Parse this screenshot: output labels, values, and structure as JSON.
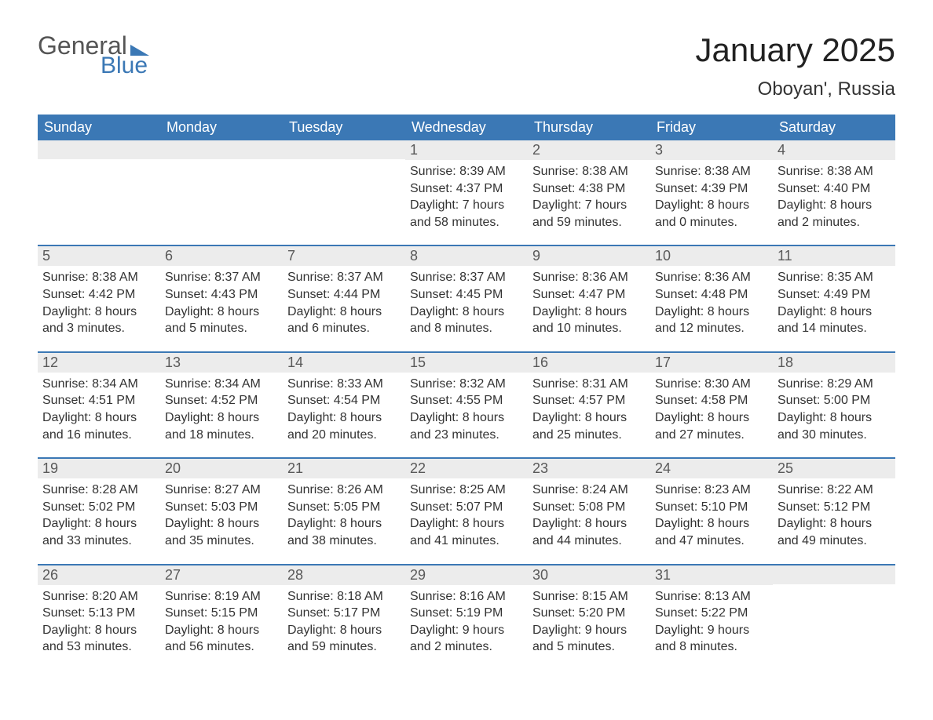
{
  "logo": {
    "word1": "General",
    "word2": "Blue"
  },
  "title": "January 2025",
  "location": "Oboyan', Russia",
  "colors": {
    "header_bg": "#3b78b5",
    "header_text": "#ffffff",
    "daynum_bg": "#ececec",
    "daynum_text": "#595959",
    "week_border": "#3b78b5",
    "body_text": "#333333",
    "logo_gray": "#555555",
    "logo_blue": "#3b78b5"
  },
  "day_names": [
    "Sunday",
    "Monday",
    "Tuesday",
    "Wednesday",
    "Thursday",
    "Friday",
    "Saturday"
  ],
  "weeks": [
    [
      {
        "n": "",
        "sunrise": "",
        "sunset": "",
        "daylight": ""
      },
      {
        "n": "",
        "sunrise": "",
        "sunset": "",
        "daylight": ""
      },
      {
        "n": "",
        "sunrise": "",
        "sunset": "",
        "daylight": ""
      },
      {
        "n": "1",
        "sunrise": "Sunrise: 8:39 AM",
        "sunset": "Sunset: 4:37 PM",
        "daylight": "Daylight: 7 hours and 58 minutes."
      },
      {
        "n": "2",
        "sunrise": "Sunrise: 8:38 AM",
        "sunset": "Sunset: 4:38 PM",
        "daylight": "Daylight: 7 hours and 59 minutes."
      },
      {
        "n": "3",
        "sunrise": "Sunrise: 8:38 AM",
        "sunset": "Sunset: 4:39 PM",
        "daylight": "Daylight: 8 hours and 0 minutes."
      },
      {
        "n": "4",
        "sunrise": "Sunrise: 8:38 AM",
        "sunset": "Sunset: 4:40 PM",
        "daylight": "Daylight: 8 hours and 2 minutes."
      }
    ],
    [
      {
        "n": "5",
        "sunrise": "Sunrise: 8:38 AM",
        "sunset": "Sunset: 4:42 PM",
        "daylight": "Daylight: 8 hours and 3 minutes."
      },
      {
        "n": "6",
        "sunrise": "Sunrise: 8:37 AM",
        "sunset": "Sunset: 4:43 PM",
        "daylight": "Daylight: 8 hours and 5 minutes."
      },
      {
        "n": "7",
        "sunrise": "Sunrise: 8:37 AM",
        "sunset": "Sunset: 4:44 PM",
        "daylight": "Daylight: 8 hours and 6 minutes."
      },
      {
        "n": "8",
        "sunrise": "Sunrise: 8:37 AM",
        "sunset": "Sunset: 4:45 PM",
        "daylight": "Daylight: 8 hours and 8 minutes."
      },
      {
        "n": "9",
        "sunrise": "Sunrise: 8:36 AM",
        "sunset": "Sunset: 4:47 PM",
        "daylight": "Daylight: 8 hours and 10 minutes."
      },
      {
        "n": "10",
        "sunrise": "Sunrise: 8:36 AM",
        "sunset": "Sunset: 4:48 PM",
        "daylight": "Daylight: 8 hours and 12 minutes."
      },
      {
        "n": "11",
        "sunrise": "Sunrise: 8:35 AM",
        "sunset": "Sunset: 4:49 PM",
        "daylight": "Daylight: 8 hours and 14 minutes."
      }
    ],
    [
      {
        "n": "12",
        "sunrise": "Sunrise: 8:34 AM",
        "sunset": "Sunset: 4:51 PM",
        "daylight": "Daylight: 8 hours and 16 minutes."
      },
      {
        "n": "13",
        "sunrise": "Sunrise: 8:34 AM",
        "sunset": "Sunset: 4:52 PM",
        "daylight": "Daylight: 8 hours and 18 minutes."
      },
      {
        "n": "14",
        "sunrise": "Sunrise: 8:33 AM",
        "sunset": "Sunset: 4:54 PM",
        "daylight": "Daylight: 8 hours and 20 minutes."
      },
      {
        "n": "15",
        "sunrise": "Sunrise: 8:32 AM",
        "sunset": "Sunset: 4:55 PM",
        "daylight": "Daylight: 8 hours and 23 minutes."
      },
      {
        "n": "16",
        "sunrise": "Sunrise: 8:31 AM",
        "sunset": "Sunset: 4:57 PM",
        "daylight": "Daylight: 8 hours and 25 minutes."
      },
      {
        "n": "17",
        "sunrise": "Sunrise: 8:30 AM",
        "sunset": "Sunset: 4:58 PM",
        "daylight": "Daylight: 8 hours and 27 minutes."
      },
      {
        "n": "18",
        "sunrise": "Sunrise: 8:29 AM",
        "sunset": "Sunset: 5:00 PM",
        "daylight": "Daylight: 8 hours and 30 minutes."
      }
    ],
    [
      {
        "n": "19",
        "sunrise": "Sunrise: 8:28 AM",
        "sunset": "Sunset: 5:02 PM",
        "daylight": "Daylight: 8 hours and 33 minutes."
      },
      {
        "n": "20",
        "sunrise": "Sunrise: 8:27 AM",
        "sunset": "Sunset: 5:03 PM",
        "daylight": "Daylight: 8 hours and 35 minutes."
      },
      {
        "n": "21",
        "sunrise": "Sunrise: 8:26 AM",
        "sunset": "Sunset: 5:05 PM",
        "daylight": "Daylight: 8 hours and 38 minutes."
      },
      {
        "n": "22",
        "sunrise": "Sunrise: 8:25 AM",
        "sunset": "Sunset: 5:07 PM",
        "daylight": "Daylight: 8 hours and 41 minutes."
      },
      {
        "n": "23",
        "sunrise": "Sunrise: 8:24 AM",
        "sunset": "Sunset: 5:08 PM",
        "daylight": "Daylight: 8 hours and 44 minutes."
      },
      {
        "n": "24",
        "sunrise": "Sunrise: 8:23 AM",
        "sunset": "Sunset: 5:10 PM",
        "daylight": "Daylight: 8 hours and 47 minutes."
      },
      {
        "n": "25",
        "sunrise": "Sunrise: 8:22 AM",
        "sunset": "Sunset: 5:12 PM",
        "daylight": "Daylight: 8 hours and 49 minutes."
      }
    ],
    [
      {
        "n": "26",
        "sunrise": "Sunrise: 8:20 AM",
        "sunset": "Sunset: 5:13 PM",
        "daylight": "Daylight: 8 hours and 53 minutes."
      },
      {
        "n": "27",
        "sunrise": "Sunrise: 8:19 AM",
        "sunset": "Sunset: 5:15 PM",
        "daylight": "Daylight: 8 hours and 56 minutes."
      },
      {
        "n": "28",
        "sunrise": "Sunrise: 8:18 AM",
        "sunset": "Sunset: 5:17 PM",
        "daylight": "Daylight: 8 hours and 59 minutes."
      },
      {
        "n": "29",
        "sunrise": "Sunrise: 8:16 AM",
        "sunset": "Sunset: 5:19 PM",
        "daylight": "Daylight: 9 hours and 2 minutes."
      },
      {
        "n": "30",
        "sunrise": "Sunrise: 8:15 AM",
        "sunset": "Sunset: 5:20 PM",
        "daylight": "Daylight: 9 hours and 5 minutes."
      },
      {
        "n": "31",
        "sunrise": "Sunrise: 8:13 AM",
        "sunset": "Sunset: 5:22 PM",
        "daylight": "Daylight: 9 hours and 8 minutes."
      },
      {
        "n": "",
        "sunrise": "",
        "sunset": "",
        "daylight": ""
      }
    ]
  ]
}
